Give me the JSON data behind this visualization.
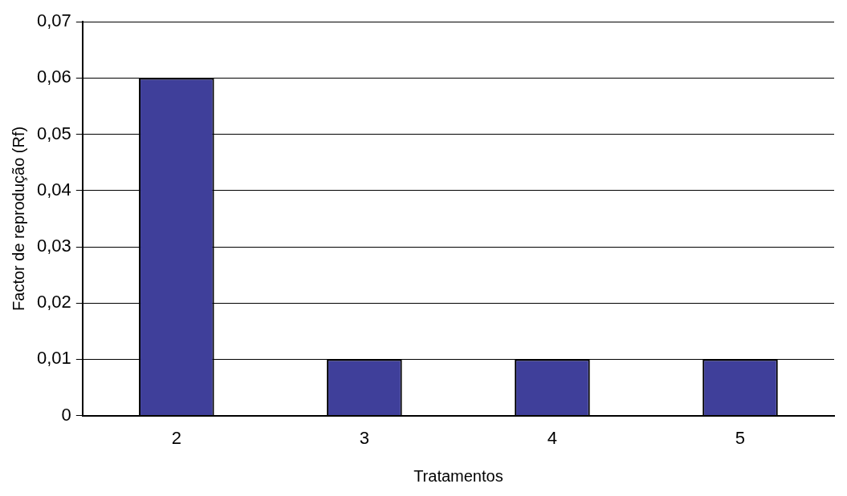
{
  "chart_data": {
    "type": "bar",
    "xlabel": "Tratamentos",
    "ylabel": "Factor de reprodução (Rf)",
    "categories": [
      "2",
      "3",
      "4",
      "5"
    ],
    "values": [
      0.06,
      0.01,
      0.01,
      0.01
    ],
    "color": "#3f3f9a",
    "ylim": [
      0,
      0.07
    ],
    "yticks": [
      0,
      {
        "value": 0.01,
        "label": "0,01"
      },
      {
        "value": 0.02,
        "label": "0,02"
      },
      {
        "value": 0.03,
        "label": "0,03"
      },
      {
        "value": 0.04,
        "label": "0,04"
      },
      {
        "value": 0.05,
        "label": "0,05"
      },
      {
        "value": 0.06,
        "label": "0,06"
      },
      {
        "value": 0.07,
        "label": "0,07"
      }
    ],
    "grid": "y",
    "legend": false
  }
}
